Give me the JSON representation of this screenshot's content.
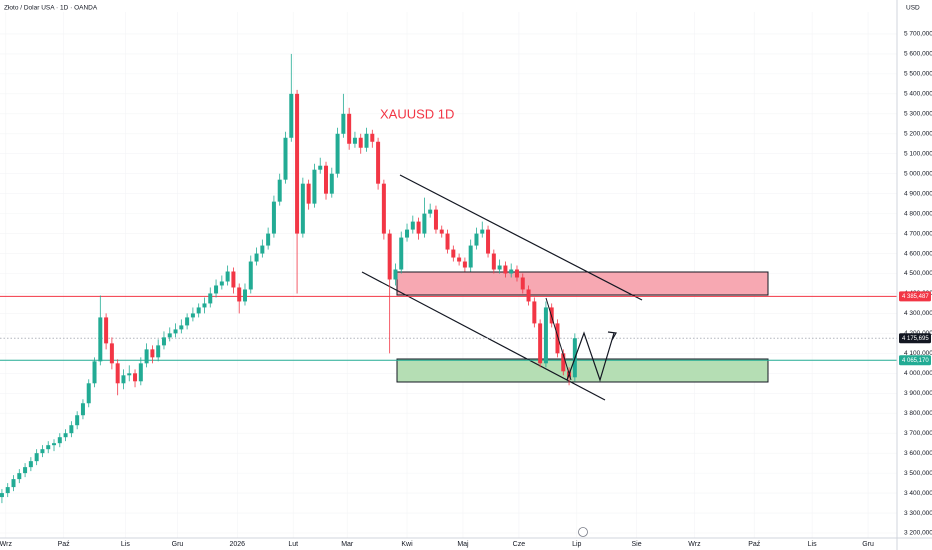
{
  "chart_data": {
    "type": "candlestick",
    "title": "Złoto / Dolar USA · 1D · OANDA",
    "currency": "USD",
    "annotation": "XAUUSD 1D",
    "xlim": [
      0,
      465
    ],
    "ylim": [
      3175,
      5810
    ],
    "xticks": [
      {
        "value": 3,
        "label": "Wrz"
      },
      {
        "value": 33,
        "label": "Paź"
      },
      {
        "value": 65,
        "label": "Lis"
      },
      {
        "value": 92,
        "label": "Gru"
      },
      {
        "value": 123,
        "label": "2026"
      },
      {
        "value": 152,
        "label": "Lut"
      },
      {
        "value": 180,
        "label": "Mar"
      },
      {
        "value": 211,
        "label": "Kwi"
      },
      {
        "value": 240,
        "label": "Maj"
      },
      {
        "value": 269,
        "label": "Cze"
      },
      {
        "value": 299,
        "label": "Lip"
      },
      {
        "value": 330,
        "label": "Sie"
      },
      {
        "value": 360,
        "label": "Wrz"
      },
      {
        "value": 391,
        "label": "Paź"
      },
      {
        "value": 421,
        "label": "Lis"
      },
      {
        "value": 450,
        "label": "Gru"
      }
    ],
    "yticks": [
      {
        "value": 3200,
        "label": "3 200,000"
      },
      {
        "value": 3300,
        "label": "3 300,000"
      },
      {
        "value": 3400,
        "label": "3 400,000"
      },
      {
        "value": 3500,
        "label": "3 500,000"
      },
      {
        "value": 3600,
        "label": "3 600,000"
      },
      {
        "value": 3700,
        "label": "3 700,000"
      },
      {
        "value": 3800,
        "label": "3 800,000"
      },
      {
        "value": 3900,
        "label": "3 900,000"
      },
      {
        "value": 4000,
        "label": "4 000,000"
      },
      {
        "value": 4100,
        "label": "4 100,000"
      },
      {
        "value": 4200,
        "label": "4 200,000"
      },
      {
        "value": 4300,
        "label": "4 300,000"
      },
      {
        "value": 4400,
        "label": "4 400,000"
      },
      {
        "value": 4500,
        "label": "4 500,000"
      },
      {
        "value": 4600,
        "label": "4 600,000"
      },
      {
        "value": 4700,
        "label": "4 700,000"
      },
      {
        "value": 4800,
        "label": "4 800,000"
      },
      {
        "value": 4900,
        "label": "4 900,000"
      },
      {
        "value": 5000,
        "label": "5 000,000"
      },
      {
        "value": 5100,
        "label": "5 100,000"
      },
      {
        "value": 5200,
        "label": "5 200,000"
      },
      {
        "value": 5300,
        "label": "5 300,000"
      },
      {
        "value": 5400,
        "label": "5 400,000"
      },
      {
        "value": 5500,
        "label": "5 500,000"
      },
      {
        "value": 5600,
        "label": "5 600,000"
      },
      {
        "value": 5700,
        "label": "5 700,000"
      }
    ],
    "up_color": "#22ab94",
    "down_color": "#f23645",
    "levels": [
      {
        "value": 4385.487,
        "label": "4 385,487",
        "color": "#f23645",
        "style": "solid"
      },
      {
        "value": 4175.695,
        "label": "4 175,695",
        "color": "#131722",
        "style": "dotted"
      },
      {
        "value": 4065.17,
        "label": "4 065,170",
        "color": "#22ab94",
        "style": "solid"
      }
    ],
    "candles": [
      [
        1,
        3380,
        3420,
        3350,
        3400
      ],
      [
        4,
        3400,
        3450,
        3380,
        3430
      ],
      [
        7,
        3430,
        3490,
        3410,
        3470
      ],
      [
        10,
        3470,
        3520,
        3450,
        3500
      ],
      [
        13,
        3500,
        3550,
        3480,
        3530
      ],
      [
        16,
        3530,
        3580,
        3510,
        3560
      ],
      [
        19,
        3560,
        3620,
        3540,
        3600
      ],
      [
        22,
        3600,
        3640,
        3580,
        3620
      ],
      [
        25,
        3620,
        3660,
        3600,
        3640
      ],
      [
        28,
        3640,
        3670,
        3610,
        3650
      ],
      [
        31,
        3650,
        3700,
        3630,
        3680
      ],
      [
        34,
        3680,
        3720,
        3660,
        3700
      ],
      [
        37,
        3700,
        3760,
        3680,
        3740
      ],
      [
        40,
        3740,
        3810,
        3720,
        3790
      ],
      [
        43,
        3790,
        3870,
        3770,
        3850
      ],
      [
        46,
        3850,
        3970,
        3830,
        3950
      ],
      [
        49,
        3950,
        4080,
        3930,
        4060
      ],
      [
        52,
        4060,
        4390,
        4040,
        4280
      ],
      [
        55,
        4280,
        4300,
        4120,
        4150
      ],
      [
        58,
        4150,
        4180,
        4020,
        4050
      ],
      [
        61,
        4050,
        4070,
        3890,
        3950
      ],
      [
        64,
        3950,
        4020,
        3920,
        3990
      ],
      [
        67,
        3990,
        4040,
        3960,
        4000
      ],
      [
        70,
        4000,
        4020,
        3930,
        3960
      ],
      [
        73,
        3960,
        4080,
        3940,
        4050
      ],
      [
        76,
        4050,
        4150,
        4030,
        4120
      ],
      [
        79,
        4120,
        4140,
        4050,
        4080
      ],
      [
        82,
        4080,
        4170,
        4060,
        4140
      ],
      [
        85,
        4140,
        4210,
        4120,
        4180
      ],
      [
        88,
        4180,
        4230,
        4160,
        4200
      ],
      [
        91,
        4200,
        4250,
        4180,
        4220
      ],
      [
        94,
        4220,
        4270,
        4200,
        4240
      ],
      [
        97,
        4240,
        4300,
        4220,
        4280
      ],
      [
        100,
        4280,
        4330,
        4260,
        4300
      ],
      [
        103,
        4300,
        4350,
        4280,
        4330
      ],
      [
        106,
        4330,
        4380,
        4300,
        4350
      ],
      [
        109,
        4350,
        4430,
        4330,
        4400
      ],
      [
        112,
        4400,
        4470,
        4380,
        4440
      ],
      [
        115,
        4440,
        4490,
        4420,
        4460
      ],
      [
        118,
        4460,
        4540,
        4440,
        4510
      ],
      [
        121,
        4510,
        4530,
        4400,
        4430
      ],
      [
        124,
        4430,
        4450,
        4300,
        4360
      ],
      [
        127,
        4360,
        4450,
        4340,
        4420
      ],
      [
        130,
        4420,
        4590,
        4400,
        4560
      ],
      [
        133,
        4560,
        4630,
        4540,
        4600
      ],
      [
        136,
        4600,
        4670,
        4580,
        4640
      ],
      [
        139,
        4640,
        4730,
        4620,
        4700
      ],
      [
        142,
        4700,
        4890,
        4680,
        4860
      ],
      [
        145,
        4860,
        5000,
        4840,
        4970
      ],
      [
        148,
        4970,
        5210,
        4950,
        5180
      ],
      [
        151,
        5180,
        5600,
        5160,
        5400
      ],
      [
        154,
        5400,
        5420,
        4400,
        4700
      ],
      [
        157,
        4700,
        4980,
        4680,
        4950
      ],
      [
        160,
        4950,
        4970,
        4820,
        4850
      ],
      [
        163,
        4850,
        5050,
        4830,
        5020
      ],
      [
        166,
        5020,
        5080,
        5000,
        5040
      ],
      [
        169,
        5040,
        5060,
        4870,
        4900
      ],
      [
        172,
        4900,
        5030,
        4880,
        5000
      ],
      [
        175,
        5000,
        5230,
        4980,
        5200
      ],
      [
        178,
        5200,
        5400,
        5180,
        5300
      ],
      [
        181,
        5300,
        5330,
        5120,
        5150
      ],
      [
        184,
        5150,
        5210,
        5130,
        5180
      ],
      [
        187,
        5180,
        5200,
        5100,
        5130
      ],
      [
        190,
        5130,
        5230,
        5110,
        5200
      ],
      [
        193,
        5200,
        5220,
        5130,
        5160
      ],
      [
        196,
        5160,
        5180,
        4920,
        4950
      ],
      [
        199,
        4950,
        4970,
        4670,
        4700
      ],
      [
        202,
        4700,
        4720,
        4100,
        4470
      ],
      [
        205,
        4470,
        4550,
        4440,
        4520
      ],
      [
        208,
        4520,
        4710,
        4500,
        4680
      ],
      [
        211,
        4680,
        4750,
        4660,
        4720
      ],
      [
        214,
        4720,
        4790,
        4700,
        4760
      ],
      [
        217,
        4760,
        4780,
        4670,
        4700
      ],
      [
        220,
        4700,
        4880,
        4680,
        4800
      ],
      [
        223,
        4800,
        4850,
        4780,
        4820
      ],
      [
        226,
        4820,
        4840,
        4700,
        4720
      ],
      [
        229,
        4720,
        4740,
        4680,
        4700
      ],
      [
        232,
        4700,
        4720,
        4600,
        4620
      ],
      [
        235,
        4620,
        4640,
        4560,
        4580
      ],
      [
        238,
        4580,
        4600,
        4540,
        4560
      ],
      [
        241,
        4560,
        4580,
        4510,
        4530
      ],
      [
        244,
        4530,
        4670,
        4510,
        4640
      ],
      [
        247,
        4640,
        4730,
        4620,
        4700
      ],
      [
        250,
        4700,
        4760,
        4680,
        4720
      ],
      [
        253,
        4720,
        4740,
        4580,
        4600
      ],
      [
        256,
        4600,
        4620,
        4500,
        4520
      ],
      [
        259,
        4520,
        4570,
        4500,
        4540
      ],
      [
        262,
        4540,
        4560,
        4480,
        4500
      ],
      [
        265,
        4500,
        4550,
        4480,
        4520
      ],
      [
        268,
        4520,
        4540,
        4460,
        4480
      ],
      [
        271,
        4480,
        4500,
        4400,
        4420
      ],
      [
        274,
        4420,
        4440,
        4340,
        4360
      ],
      [
        277,
        4360,
        4380,
        4230,
        4250
      ],
      [
        280,
        4250,
        4270,
        4030,
        4050
      ],
      [
        283,
        4050,
        4360,
        4030,
        4330
      ],
      [
        286,
        4330,
        4350,
        4230,
        4250
      ],
      [
        289,
        4250,
        4270,
        4080,
        4100
      ],
      [
        292,
        4100,
        4120,
        3990,
        4010
      ],
      [
        295,
        4010,
        4030,
        3940,
        3980
      ],
      [
        298,
        3980,
        4200,
        3960,
        4175.695
      ]
    ]
  }
}
